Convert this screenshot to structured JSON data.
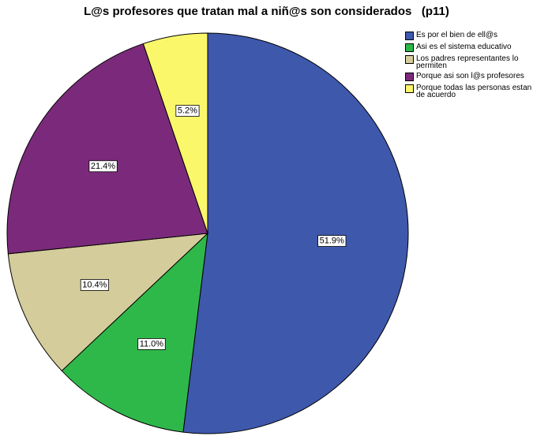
{
  "chart_data": {
    "type": "pie",
    "title": "L@s profesores que tratan mal a niñ@s son considerados   (p11)",
    "categories": [
      "Es por el bien de ell@s",
      "Asi es el sistema educativo",
      "Los padres  representantes lo permiten",
      "Porque asi son l@s profesores",
      "Porque todas las personas estan de acuerdo"
    ],
    "values": [
      51.9,
      11.0,
      10.4,
      21.4,
      5.2
    ],
    "value_labels": [
      "51.9%",
      "11.0%",
      "10.4%",
      "21.4%",
      "5.2%"
    ],
    "colors": [
      "#3e58ac",
      "#2fb84a",
      "#d4cc9a",
      "#7b2a7b",
      "#fbf76b"
    ],
    "legend": "top-right"
  }
}
